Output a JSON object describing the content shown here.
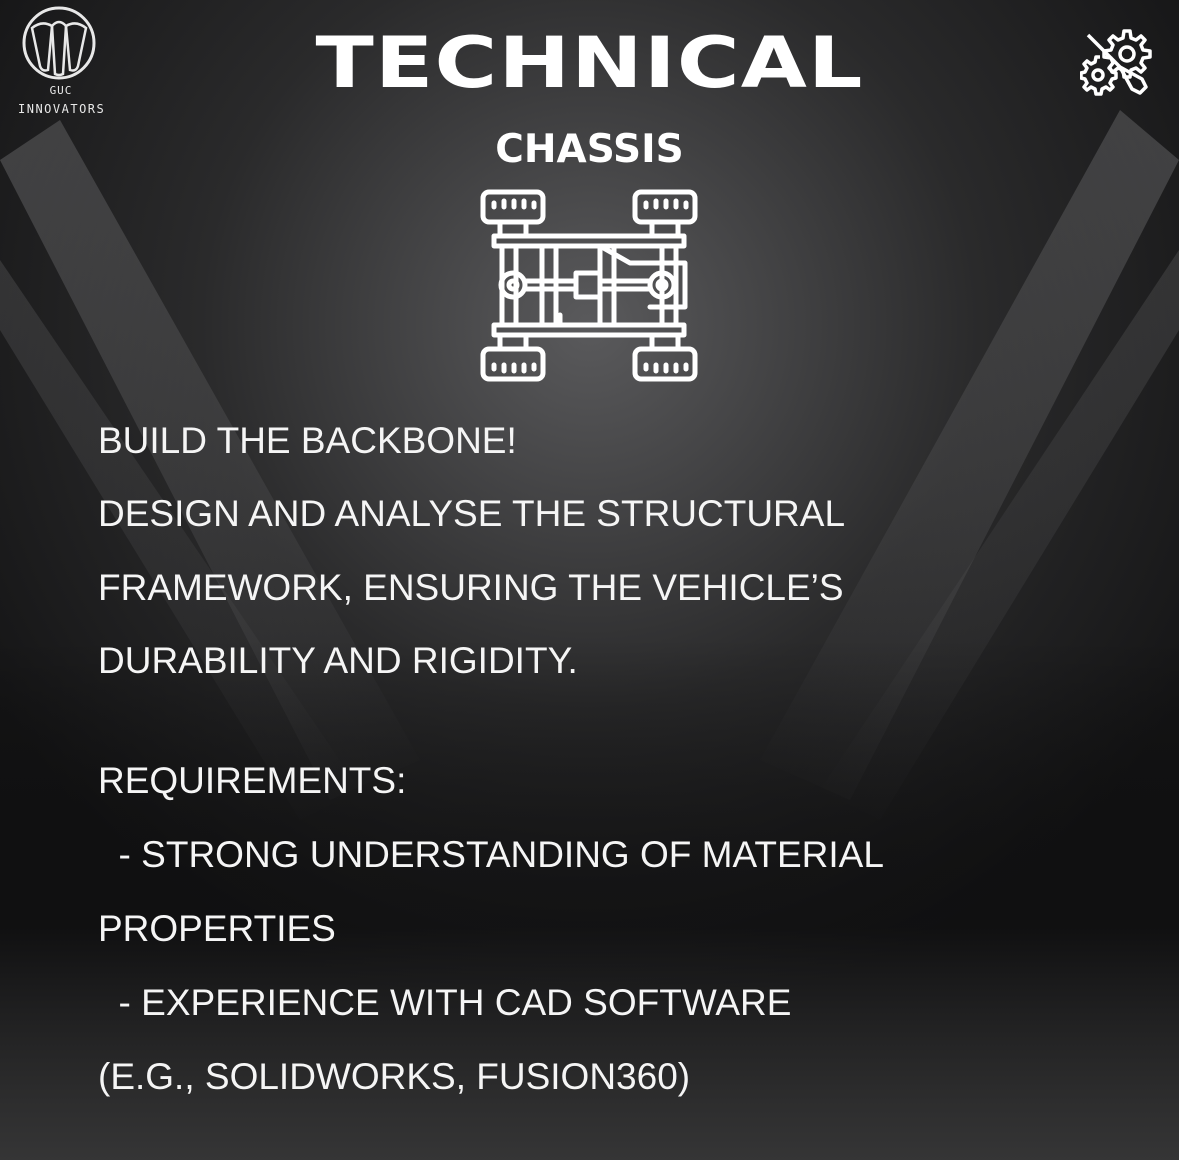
{
  "logo": {
    "icon": "guc-innovators-logo",
    "line1": "GUC",
    "line2": "INNOVATORS"
  },
  "title": "TECHNICAL",
  "subtitle": "CHASSIS",
  "top_right_icon": "gear-wrench-icon",
  "center_icon": "chassis-icon",
  "body_lines": [
    "BUILD THE BACKBONE!",
    "DESIGN AND ANALYSE THE STRUCTURAL",
    "FRAMEWORK, ENSURING THE VEHICLE’S",
    "DURABILITY AND RIGIDITY."
  ],
  "requirements": {
    "heading": "REQUIREMENTS:",
    "lines": [
      "  - STRONG UNDERSTANDING OF MATERIAL",
      "PROPERTIES",
      "  - EXPERIENCE WITH CAD SOFTWARE",
      "(E.G., SOLIDWORKS, FUSION360)"
    ]
  },
  "colors": {
    "background": "#1a1a1b",
    "text": "#ffffff"
  }
}
